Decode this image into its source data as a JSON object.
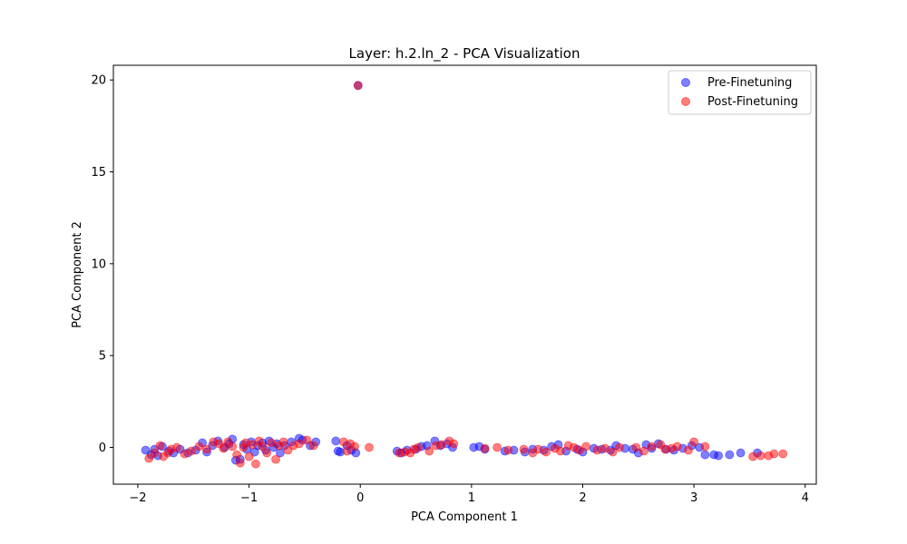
{
  "chart_data": {
    "type": "scatter",
    "title": "Layer: h.2.ln_2 - PCA Visualization",
    "xlabel": "PCA Component 1",
    "ylabel": "PCA Component 2",
    "xlim": [
      -2.22,
      4.1
    ],
    "ylim": [
      -2.0,
      20.8
    ],
    "xticks": [
      -2,
      -1,
      0,
      1,
      2,
      3,
      4
    ],
    "xtick_labels": [
      "−2",
      "−1",
      "0",
      "1",
      "2",
      "3",
      "4"
    ],
    "yticks": [
      0,
      5,
      10,
      15,
      20
    ],
    "ytick_labels": [
      "0",
      "5",
      "10",
      "15",
      "20"
    ],
    "grid": false,
    "legend_position": "top-right",
    "series": [
      {
        "name": "Pre-Finetuning",
        "color": "#0000ff",
        "alpha": 0.5,
        "points": [
          [
            -0.02,
            19.7
          ],
          [
            -1.93,
            -0.15
          ],
          [
            -1.88,
            -0.4
          ],
          [
            -1.85,
            -0.1
          ],
          [
            -1.82,
            -0.45
          ],
          [
            -1.78,
            0.05
          ],
          [
            -1.72,
            -0.2
          ],
          [
            -1.68,
            -0.3
          ],
          [
            -1.62,
            -0.1
          ],
          [
            -1.55,
            -0.3
          ],
          [
            -1.48,
            -0.15
          ],
          [
            -1.42,
            0.25
          ],
          [
            -1.38,
            -0.25
          ],
          [
            -1.33,
            0.1
          ],
          [
            -1.28,
            0.35
          ],
          [
            -1.22,
            0.0
          ],
          [
            -1.18,
            0.2
          ],
          [
            -1.15,
            0.45
          ],
          [
            -1.12,
            -0.7
          ],
          [
            -1.08,
            -0.65
          ],
          [
            -1.05,
            0.15
          ],
          [
            -1.02,
            -0.1
          ],
          [
            -0.98,
            0.3
          ],
          [
            -0.95,
            -0.25
          ],
          [
            -0.92,
            0.1
          ],
          [
            -0.88,
            0.25
          ],
          [
            -0.85,
            -0.15
          ],
          [
            -0.82,
            0.35
          ],
          [
            -0.78,
            0.0
          ],
          [
            -0.75,
            0.2
          ],
          [
            -0.72,
            -0.3
          ],
          [
            -0.68,
            0.1
          ],
          [
            -0.62,
            0.3
          ],
          [
            -0.55,
            0.5
          ],
          [
            -0.52,
            0.4
          ],
          [
            -0.45,
            0.1
          ],
          [
            -0.4,
            0.3
          ],
          [
            -0.22,
            0.35
          ],
          [
            -0.2,
            -0.2
          ],
          [
            -0.18,
            -0.25
          ],
          [
            -0.12,
            0.1
          ],
          [
            -0.08,
            -0.15
          ],
          [
            -0.04,
            -0.3
          ],
          [
            0.33,
            -0.2
          ],
          [
            0.37,
            -0.3
          ],
          [
            0.42,
            -0.15
          ],
          [
            0.5,
            -0.1
          ],
          [
            0.55,
            0.05
          ],
          [
            0.6,
            0.1
          ],
          [
            0.67,
            0.35
          ],
          [
            0.72,
            0.1
          ],
          [
            0.78,
            0.2
          ],
          [
            0.83,
            0.0
          ],
          [
            1.02,
            0.0
          ],
          [
            1.07,
            0.05
          ],
          [
            1.12,
            -0.1
          ],
          [
            1.3,
            -0.2
          ],
          [
            1.38,
            -0.15
          ],
          [
            1.48,
            -0.25
          ],
          [
            1.55,
            -0.1
          ],
          [
            1.65,
            -0.15
          ],
          [
            1.72,
            0.05
          ],
          [
            1.78,
            0.15
          ],
          [
            1.85,
            -0.2
          ],
          [
            1.95,
            -0.1
          ],
          [
            2.0,
            -0.25
          ],
          [
            2.1,
            -0.05
          ],
          [
            2.17,
            -0.1
          ],
          [
            2.25,
            -0.15
          ],
          [
            2.3,
            0.1
          ],
          [
            2.38,
            -0.05
          ],
          [
            2.45,
            -0.1
          ],
          [
            2.5,
            -0.3
          ],
          [
            2.57,
            0.15
          ],
          [
            2.62,
            -0.05
          ],
          [
            2.68,
            0.2
          ],
          [
            2.75,
            -0.1
          ],
          [
            2.82,
            -0.15
          ],
          [
            2.9,
            -0.05
          ],
          [
            2.98,
            0.1
          ],
          [
            3.05,
            0.0
          ],
          [
            3.1,
            -0.4
          ],
          [
            3.18,
            -0.4
          ],
          [
            3.22,
            -0.45
          ],
          [
            3.32,
            -0.4
          ],
          [
            3.42,
            -0.3
          ],
          [
            3.57,
            -0.3
          ]
        ]
      },
      {
        "name": "Post-Finetuning",
        "color": "#ff0000",
        "alpha": 0.5,
        "points": [
          [
            -0.02,
            19.7
          ],
          [
            -1.9,
            -0.6
          ],
          [
            -1.85,
            -0.3
          ],
          [
            -1.8,
            0.1
          ],
          [
            -1.77,
            -0.5
          ],
          [
            -1.73,
            -0.3
          ],
          [
            -1.7,
            -0.1
          ],
          [
            -1.65,
            0.0
          ],
          [
            -1.58,
            -0.35
          ],
          [
            -1.52,
            -0.2
          ],
          [
            -1.45,
            0.05
          ],
          [
            -1.38,
            -0.1
          ],
          [
            -1.32,
            0.3
          ],
          [
            -1.27,
            0.2
          ],
          [
            -1.23,
            -0.05
          ],
          [
            -1.19,
            0.3
          ],
          [
            -1.15,
            0.05
          ],
          [
            -1.11,
            -0.4
          ],
          [
            -1.08,
            -0.85
          ],
          [
            -1.05,
            0.0
          ],
          [
            -1.03,
            0.25
          ],
          [
            -1.0,
            -0.5
          ],
          [
            -0.97,
            0.15
          ],
          [
            -0.94,
            -0.9
          ],
          [
            -0.91,
            0.35
          ],
          [
            -0.88,
            0.05
          ],
          [
            -0.84,
            -0.3
          ],
          [
            -0.8,
            0.25
          ],
          [
            -0.76,
            -0.65
          ],
          [
            -0.73,
            0.1
          ],
          [
            -0.69,
            0.3
          ],
          [
            -0.65,
            -0.15
          ],
          [
            -0.6,
            0.1
          ],
          [
            -0.55,
            0.2
          ],
          [
            -0.48,
            0.4
          ],
          [
            -0.42,
            0.1
          ],
          [
            -0.15,
            0.3
          ],
          [
            -0.12,
            -0.2
          ],
          [
            -0.09,
            0.2
          ],
          [
            -0.05,
            0.05
          ],
          [
            0.08,
            0.0
          ],
          [
            0.35,
            -0.3
          ],
          [
            0.4,
            -0.25
          ],
          [
            0.45,
            -0.3
          ],
          [
            0.48,
            -0.1
          ],
          [
            0.52,
            0.0
          ],
          [
            0.62,
            -0.2
          ],
          [
            0.68,
            0.1
          ],
          [
            0.73,
            0.15
          ],
          [
            0.8,
            0.35
          ],
          [
            0.84,
            0.2
          ],
          [
            1.12,
            -0.05
          ],
          [
            1.23,
            0.0
          ],
          [
            1.33,
            -0.15
          ],
          [
            1.47,
            -0.1
          ],
          [
            1.55,
            -0.3
          ],
          [
            1.6,
            -0.1
          ],
          [
            1.67,
            -0.25
          ],
          [
            1.75,
            -0.05
          ],
          [
            1.8,
            -0.2
          ],
          [
            1.87,
            0.1
          ],
          [
            1.92,
            0.0
          ],
          [
            1.97,
            -0.15
          ],
          [
            2.03,
            0.05
          ],
          [
            2.13,
            -0.15
          ],
          [
            2.2,
            -0.05
          ],
          [
            2.27,
            -0.25
          ],
          [
            2.33,
            0.0
          ],
          [
            2.48,
            0.0
          ],
          [
            2.55,
            -0.2
          ],
          [
            2.62,
            0.05
          ],
          [
            2.7,
            0.15
          ],
          [
            2.74,
            -0.1
          ],
          [
            2.8,
            -0.05
          ],
          [
            2.85,
            0.05
          ],
          [
            2.95,
            -0.15
          ],
          [
            3.0,
            0.3
          ],
          [
            3.1,
            0.05
          ],
          [
            3.53,
            -0.5
          ],
          [
            3.6,
            -0.45
          ],
          [
            3.67,
            -0.45
          ],
          [
            3.72,
            -0.35
          ],
          [
            3.8,
            -0.35
          ]
        ]
      }
    ]
  }
}
